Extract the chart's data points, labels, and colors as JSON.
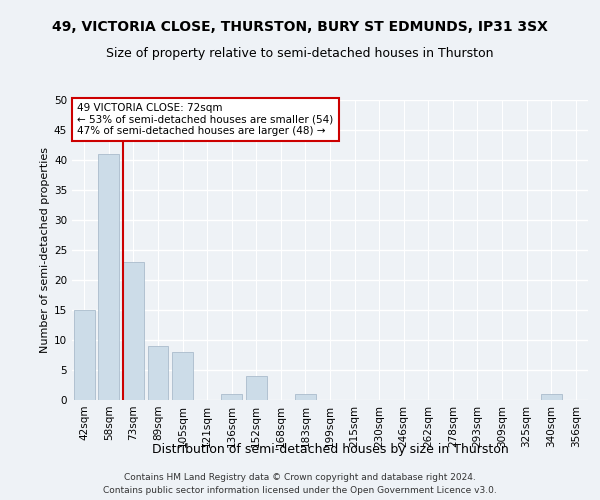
{
  "title1": "49, VICTORIA CLOSE, THURSTON, BURY ST EDMUNDS, IP31 3SX",
  "title2": "Size of property relative to semi-detached houses in Thurston",
  "xlabel": "Distribution of semi-detached houses by size in Thurston",
  "ylabel": "Number of semi-detached properties",
  "footnote1": "Contains HM Land Registry data © Crown copyright and database right 2024.",
  "footnote2": "Contains public sector information licensed under the Open Government Licence v3.0.",
  "categories": [
    "42sqm",
    "58sqm",
    "73sqm",
    "89sqm",
    "105sqm",
    "121sqm",
    "136sqm",
    "152sqm",
    "168sqm",
    "183sqm",
    "199sqm",
    "215sqm",
    "230sqm",
    "246sqm",
    "262sqm",
    "278sqm",
    "293sqm",
    "309sqm",
    "325sqm",
    "340sqm",
    "356sqm"
  ],
  "values": [
    15,
    41,
    23,
    9,
    8,
    0,
    1,
    4,
    0,
    1,
    0,
    0,
    0,
    0,
    0,
    0,
    0,
    0,
    0,
    1,
    0
  ],
  "bar_color": "#ccdce8",
  "bar_edge_color": "#aabccc",
  "annotation_text": "49 VICTORIA CLOSE: 72sqm\n← 53% of semi-detached houses are smaller (54)\n47% of semi-detached houses are larger (48) →",
  "annotation_box_facecolor": "#ffffff",
  "annotation_box_edgecolor": "#cc0000",
  "vline_color": "#cc0000",
  "ylim": [
    0,
    50
  ],
  "yticks": [
    0,
    5,
    10,
    15,
    20,
    25,
    30,
    35,
    40,
    45,
    50
  ],
  "bg_color": "#eef2f6",
  "grid_color": "#ffffff",
  "title_fontsize": 10,
  "subtitle_fontsize": 9,
  "xlabel_fontsize": 9,
  "ylabel_fontsize": 8,
  "tick_fontsize": 7.5,
  "annotation_fontsize": 7.5,
  "footnote_fontsize": 6.5
}
